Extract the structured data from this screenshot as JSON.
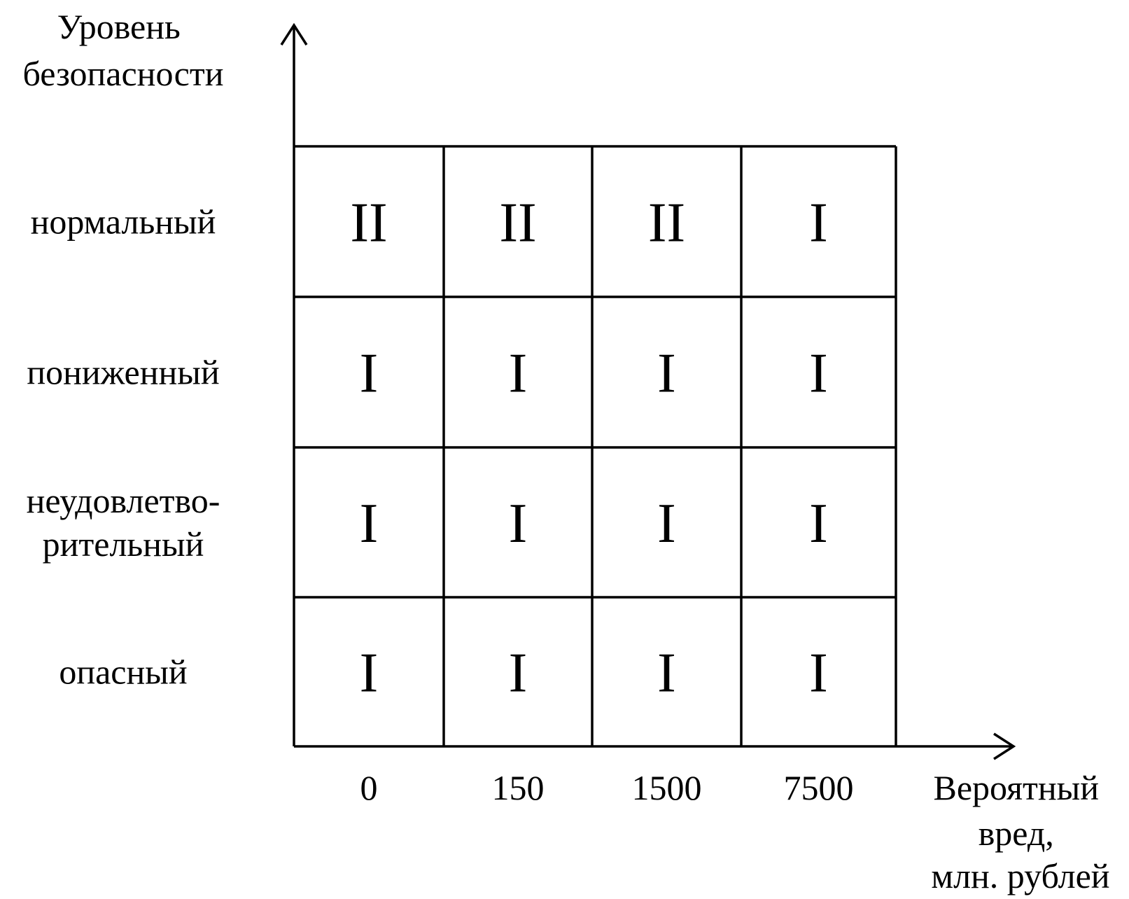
{
  "y_axis": {
    "title_lines": [
      "Уровень",
      "безопасности"
    ],
    "categories": [
      {
        "lines": [
          "нормальный"
        ]
      },
      {
        "lines": [
          "пониженный"
        ]
      },
      {
        "lines": [
          "неудовлетво-",
          "рительный"
        ]
      },
      {
        "lines": [
          "опасный"
        ]
      }
    ]
  },
  "x_axis": {
    "title_lines": [
      "Вероятный",
      "вред,",
      "млн. рублей"
    ],
    "ticks": [
      "0",
      "150",
      "1500",
      "7500"
    ]
  },
  "grid": [
    [
      "II",
      "II",
      "II",
      "I"
    ],
    [
      "I",
      "I",
      "I",
      "I"
    ],
    [
      "I",
      "I",
      "I",
      "I"
    ],
    [
      "I",
      "I",
      "I",
      "I"
    ]
  ],
  "colors": {
    "line": "#000000",
    "text": "#000000",
    "background": "#ffffff"
  }
}
